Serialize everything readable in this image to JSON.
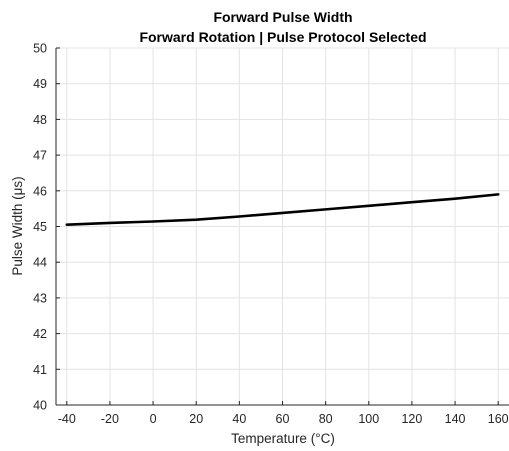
{
  "chart_data": {
    "type": "line",
    "title": "Forward Pulse Width",
    "subtitle": "Forward Rotation | Pulse Protocol Selected",
    "xlabel": "Temperature (°C)",
    "ylabel": "Pulse Width (μs)",
    "xlim": [
      -45,
      165
    ],
    "ylim": [
      40,
      50
    ],
    "xticks": [
      -40,
      -20,
      0,
      20,
      40,
      60,
      80,
      100,
      120,
      140,
      160
    ],
    "yticks": [
      40,
      41,
      42,
      43,
      44,
      45,
      46,
      47,
      48,
      49,
      50
    ],
    "grid": true,
    "colors": {
      "line": "#000000",
      "grid": "#e3e3e3",
      "axis": "#262626"
    },
    "series": [
      {
        "x": [
          -40,
          -20,
          0,
          20,
          40,
          60,
          80,
          100,
          120,
          140,
          160
        ],
        "y": [
          45.05,
          45.1,
          45.14,
          45.19,
          45.28,
          45.38,
          45.48,
          45.58,
          45.68,
          45.78,
          45.9
        ]
      }
    ]
  }
}
